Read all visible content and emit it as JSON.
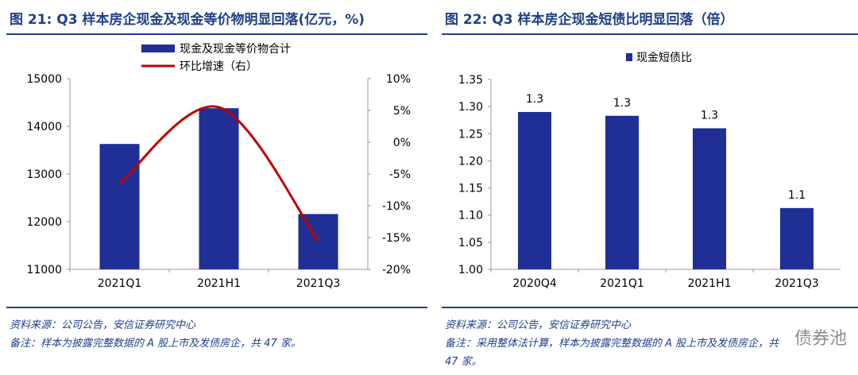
{
  "left": {
    "title": "图 21: Q3 样本房企现金及现金等价物明显回落(亿元，%)",
    "source": "资料来源：公司公告，安信证券研究中心",
    "note": "备注：样本为披露完整数据的 A 股上市及发债房企，共 47 家。"
  },
  "right": {
    "title": "图 22: Q3 样本房企现金短债比明显回落（倍）",
    "source": "资料来源：公司公告，安信证券研究中心",
    "note_line1": "备注：采用整体法计算，样本为披露完整数据的 A 股上市及发债房企，共",
    "note_line2": "47 家。",
    "watermark": "债券池"
  },
  "colors": {
    "bar": "#1f2f96",
    "line": "#c00000",
    "title": "#1f3f8a"
  },
  "chart_data": [
    {
      "type": "bar+line",
      "title": "Q3 样本房企现金及现金等价物明显回落(亿元，%)",
      "categories": [
        "2021Q1",
        "2021H1",
        "2021Q3"
      ],
      "series": [
        {
          "name": "现金及现金等价物合计",
          "type": "bar",
          "axis": "left",
          "values": [
            13630,
            14380,
            12160
          ]
        },
        {
          "name": "环比增速（右）",
          "type": "line",
          "axis": "right",
          "values": [
            -6.5,
            5.5,
            -15.5
          ]
        }
      ],
      "y_left": {
        "min": 11000,
        "max": 15000,
        "ticks": [
          "15000",
          "14000",
          "13000",
          "12000",
          "11000"
        ]
      },
      "y_right": {
        "min": -20,
        "max": 10,
        "ticks": [
          "10%",
          "5%",
          "0%",
          "-5%",
          "-10%",
          "-15%",
          "-20%"
        ]
      },
      "legend": "top-center"
    },
    {
      "type": "bar",
      "title": "Q3 样本房企现金短债比明显回落（倍）",
      "categories": [
        "2020Q4",
        "2021Q1",
        "2021H1",
        "2021Q3"
      ],
      "series": [
        {
          "name": "现金短债比",
          "values": [
            1.29,
            1.283,
            1.26,
            1.113
          ],
          "labels": [
            "1.3",
            "1.3",
            "1.3",
            "1.1"
          ]
        }
      ],
      "y": {
        "min": 1.0,
        "max": 1.35,
        "ticks": [
          "1.35",
          "1.30",
          "1.25",
          "1.20",
          "1.15",
          "1.10",
          "1.05",
          "1.00"
        ]
      },
      "legend": "top-center"
    }
  ]
}
